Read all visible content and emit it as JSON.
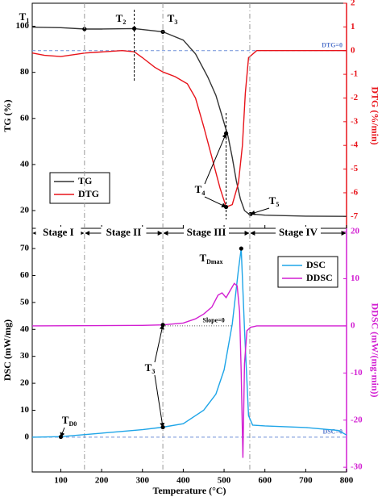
{
  "chart_data": [
    {
      "type": "line",
      "ylabel": "TG (%)",
      "y2label": "DTG (%/min)",
      "xlim": [
        30,
        800
      ],
      "ylim": [
        12.3,
        110
      ],
      "yticks": [
        20,
        40,
        60,
        80,
        100
      ],
      "y2lim": [
        -7.5,
        2
      ],
      "y2ticks": [
        -7,
        -6,
        -5,
        -4,
        -3,
        -2,
        -1,
        0,
        1,
        2
      ],
      "legend": "lower left",
      "series": [
        {
          "name": "TG",
          "color": "#333333",
          "axis": "y",
          "x": [
            30,
            100,
            160,
            200,
            280,
            350,
            400,
            430,
            460,
            480,
            500,
            510,
            520,
            530,
            540,
            550,
            560,
            600,
            700,
            800
          ],
          "values": [
            99.6,
            99.4,
            98.8,
            98.8,
            99.0,
            97.6,
            94,
            88,
            78,
            70,
            58,
            52,
            43,
            33,
            25,
            20,
            18.6,
            18,
            17.6,
            17.5
          ]
        },
        {
          "name": "DTG",
          "color": "#e8141b",
          "axis": "y2",
          "x": [
            30,
            60,
            100,
            160,
            250,
            280,
            300,
            330,
            350,
            380,
            410,
            430,
            450,
            470,
            490,
            505,
            520,
            535,
            545,
            552,
            560,
            580,
            700,
            800
          ],
          "values": [
            -0.1,
            -0.2,
            -0.25,
            -0.1,
            0,
            -0.05,
            -0.3,
            -0.7,
            -0.9,
            -1.1,
            -1.4,
            -2,
            -3.2,
            -4.5,
            -5.8,
            -6.6,
            -6.5,
            -5.6,
            -4,
            -1.8,
            -0.3,
            0,
            0,
            0
          ]
        }
      ],
      "reference_lines": [
        {
          "label": "DTG=0",
          "axis": "y2",
          "value": 0
        }
      ],
      "annotations": [
        {
          "label": "T",
          "sub": "1",
          "points": [
            {
              "x": 158,
              "y": 98.8
            }
          ]
        },
        {
          "label": "T",
          "sub": "2",
          "points": [
            {
              "x": 280,
              "y": 99.0
            }
          ]
        },
        {
          "label": "T",
          "sub": "3",
          "points": [
            {
              "x": 350,
              "y": 97.6
            }
          ]
        },
        {
          "label": "T",
          "sub": "4",
          "points": [
            {
              "x": 505,
              "y": 53.5
            },
            {
              "x": 505,
              "y2": -6.6
            }
          ]
        },
        {
          "label": "T",
          "sub": "5",
          "points": [
            {
              "x": 565,
              "y": 18.5
            }
          ]
        }
      ]
    },
    {
      "type": "line",
      "xlabel": "Temperature (°C)",
      "ylabel": "DSC (mW/mg)",
      "y2label": "DDSC (mW/(mg·min))",
      "xlim": [
        30,
        800
      ],
      "xticks": [
        100,
        200,
        300,
        400,
        500,
        600,
        700,
        800
      ],
      "ylim": [
        -12.9,
        77.5
      ],
      "yticks": [
        0,
        10,
        20,
        30,
        40,
        50,
        60,
        70
      ],
      "y2lim": [
        -31,
        20.7
      ],
      "y2ticks": [
        -30,
        -20,
        -10,
        0,
        10,
        20
      ],
      "legend": "upper right",
      "series": [
        {
          "name": "DSC",
          "color": "#1ea5e8",
          "axis": "y",
          "x": [
            30,
            100,
            200,
            300,
            350,
            400,
            450,
            480,
            500,
            520,
            535,
            542,
            550,
            560,
            570,
            600,
            700,
            780,
            800
          ],
          "values": [
            0,
            0.2,
            1.5,
            2.8,
            3.7,
            5,
            10,
            16,
            25,
            42,
            62,
            70,
            40,
            8,
            4.5,
            4.2,
            3.6,
            2.5,
            0.8
          ]
        },
        {
          "name": "DDSC",
          "color": "#d21fd2",
          "axis": "y2",
          "x": [
            30,
            300,
            350,
            400,
            430,
            450,
            470,
            485,
            495,
            505,
            515,
            525,
            532,
            538,
            542,
            546,
            550,
            556,
            565,
            580,
            800
          ],
          "values": [
            0,
            0.1,
            0.2,
            0.6,
            1.5,
            2.5,
            4,
            6.5,
            7,
            6,
            7.5,
            9,
            8.5,
            3,
            -10,
            -28,
            -8,
            -1,
            -0.3,
            0,
            0
          ]
        }
      ],
      "reference_lines": [
        {
          "label": "DSC=0",
          "axis": "y",
          "value": 0
        },
        {
          "label": "Slope=0",
          "axis": "y2",
          "value": 0,
          "x": [
            350,
            520
          ]
        }
      ],
      "annotations": [
        {
          "label": "T",
          "sub": "Dmax",
          "points": [
            {
              "x": 542,
              "y": 70
            }
          ]
        },
        {
          "label": "T",
          "sub": "3",
          "points": [
            {
              "x": 350,
              "y2": 0.2
            },
            {
              "x": 350,
              "y": 3.7
            }
          ]
        },
        {
          "label": "T",
          "sub": "D0",
          "points": [
            {
              "x": 100,
              "y": 0.1
            }
          ]
        }
      ],
      "stage_boundaries": [
        158,
        350,
        563
      ],
      "stages": [
        "Stage I",
        "Stage II",
        "Stage III",
        "Stage IV"
      ]
    }
  ]
}
